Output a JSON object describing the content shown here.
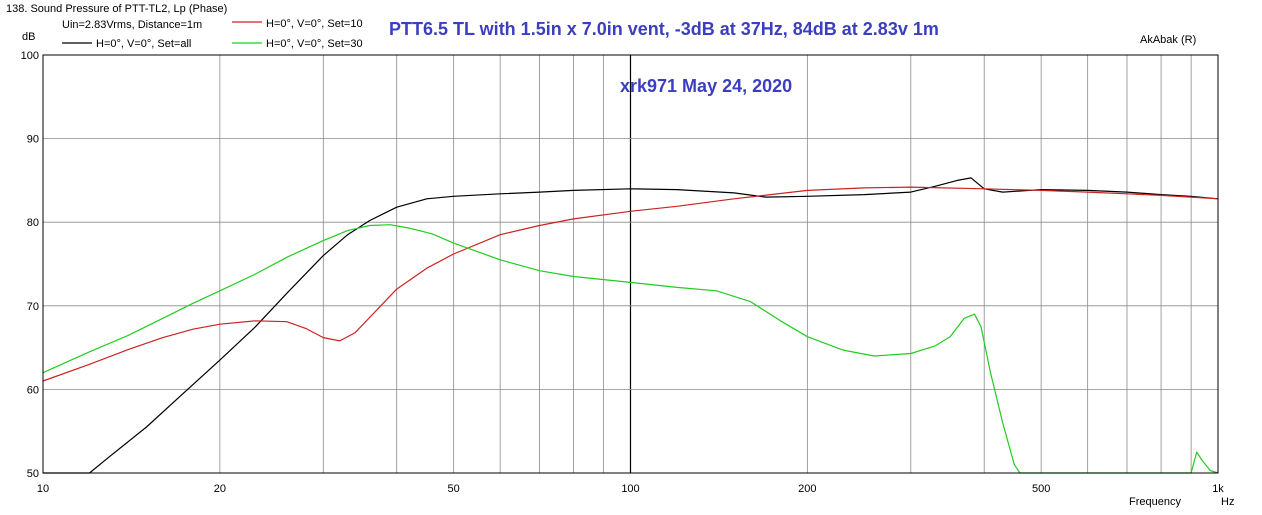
{
  "chart_data": {
    "type": "line",
    "window_title": "138. Sound Pressure of PTT-TL2, Lp (Phase)",
    "title": "PTT6.5 TL with 1.5in x 7.0in vent, -3dB at 37Hz,  84dB at 2.83v 1m",
    "subtitle": "xrk971   May 24, 2020",
    "conditions": "Uin=2.83Vrms, Distance=1m",
    "software_label": "AkAbak (R)",
    "ylabel": "dB",
    "xlabel": "Frequency",
    "xunit": "Hz",
    "x_scale": "log",
    "xlim": [
      10,
      1000
    ],
    "ylim": [
      50,
      100
    ],
    "grid": true,
    "legend_position": "top-left",
    "y_ticks": [
      {
        "value": 100,
        "label": "100"
      },
      {
        "value": 90,
        "label": "90"
      },
      {
        "value": 80,
        "label": "80"
      },
      {
        "value": 70,
        "label": "70"
      },
      {
        "value": 60,
        "label": "60"
      },
      {
        "value": 50,
        "label": "50"
      }
    ],
    "x_ticks": [
      {
        "value": 10,
        "label": "10"
      },
      {
        "value": 20,
        "label": "20"
      },
      {
        "value": 50,
        "label": "50"
      },
      {
        "value": 100,
        "label": "100"
      },
      {
        "value": 200,
        "label": "200"
      },
      {
        "value": 500,
        "label": "500"
      },
      {
        "value": 1000,
        "label": "1k"
      }
    ],
    "series": [
      {
        "name": "H=0°, V=0°, Set=all",
        "color": "#000000",
        "x": [
          10,
          12,
          13,
          15,
          17,
          20,
          23,
          26,
          30,
          33,
          36,
          40,
          45,
          50,
          60,
          70,
          80,
          100,
          120,
          150,
          170,
          200,
          250,
          300,
          330,
          360,
          380,
          400,
          430,
          500,
          600,
          700,
          800,
          900,
          1000
        ],
        "y": [
          50,
          50,
          52,
          55.5,
          59,
          63.5,
          67.5,
          71.5,
          76,
          78.5,
          80.2,
          81.8,
          82.8,
          83.1,
          83.4,
          83.6,
          83.8,
          84,
          83.9,
          83.5,
          83,
          83.1,
          83.3,
          83.6,
          84.3,
          85,
          85.3,
          84,
          83.6,
          83.9,
          83.8,
          83.6,
          83.3,
          83.1,
          82.8
        ]
      },
      {
        "name": "H=0°, V=0°, Set=10",
        "color": "#cc2222",
        "x": [
          10,
          12,
          14,
          16,
          18,
          20,
          23,
          26,
          28,
          30,
          32,
          34,
          37,
          40,
          45,
          50,
          60,
          70,
          80,
          100,
          120,
          150,
          200,
          250,
          300,
          400,
          500,
          600,
          700,
          800,
          900,
          1000
        ],
        "y": [
          61,
          63,
          64.8,
          66.2,
          67.2,
          67.8,
          68.2,
          68.1,
          67.3,
          66.2,
          65.8,
          66.8,
          69.5,
          72,
          74.5,
          76.2,
          78.5,
          79.6,
          80.4,
          81.3,
          81.9,
          82.8,
          83.8,
          84.1,
          84.2,
          84,
          83.8,
          83.6,
          83.4,
          83.2,
          83,
          82.8
        ]
      },
      {
        "name": "H=0°, V=0°, Set=30",
        "color": "#22cc22",
        "x": [
          10,
          12,
          14,
          16,
          18,
          20,
          23,
          26,
          30,
          33,
          36,
          39,
          42,
          46,
          50,
          60,
          70,
          80,
          100,
          120,
          140,
          160,
          180,
          200,
          230,
          260,
          300,
          330,
          350,
          370,
          385,
          395,
          410,
          430,
          450,
          460,
          480,
          600,
          800,
          900,
          920,
          940,
          970,
          1000
        ],
        "y": [
          62,
          64.5,
          66.5,
          68.5,
          70.3,
          71.8,
          73.8,
          75.8,
          77.8,
          79,
          79.6,
          79.7,
          79.3,
          78.6,
          77.5,
          75.5,
          74.2,
          73.5,
          72.8,
          72.2,
          71.8,
          70.5,
          68.2,
          66.3,
          64.7,
          64,
          64.3,
          65.2,
          66.3,
          68.5,
          69,
          67.5,
          62,
          56,
          51,
          50,
          50,
          50,
          50,
          50,
          52.5,
          51.5,
          50.3,
          50
        ]
      }
    ]
  }
}
